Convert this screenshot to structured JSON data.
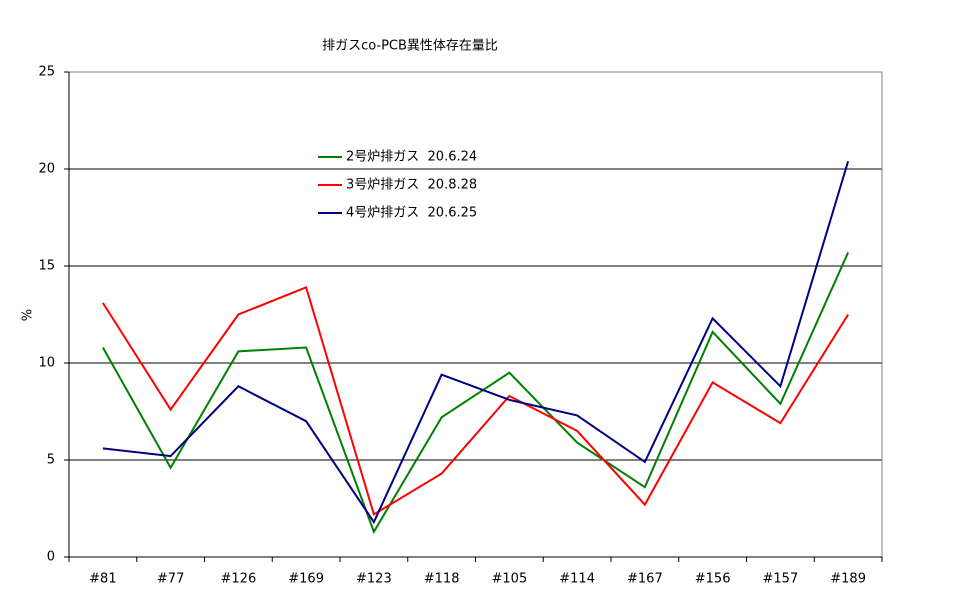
{
  "chart_data": {
    "type": "line",
    "title": "排ガスco-PCB異性体存在量比",
    "y_label": "%",
    "categories": [
      "#81",
      "#77",
      "#126",
      "#169",
      "#123",
      "#118",
      "#105",
      "#114",
      "#167",
      "#156",
      "#157",
      "#189"
    ],
    "series": [
      {
        "name": "2号炉排ガス  20.6.24",
        "color": "#008000",
        "values": [
          10.8,
          4.6,
          10.6,
          10.8,
          1.3,
          7.2,
          9.5,
          5.9,
          3.6,
          11.6,
          7.9,
          15.7
        ]
      },
      {
        "name": "3号炉排ガス  20.8.28",
        "color": "#ff0000",
        "values": [
          13.1,
          7.6,
          12.5,
          13.9,
          2.2,
          4.3,
          8.3,
          6.5,
          2.7,
          9.0,
          6.9,
          12.5
        ]
      },
      {
        "name": "4号炉排ガス  20.6.25",
        "color": "#000080",
        "values": [
          5.6,
          5.2,
          8.8,
          7.0,
          1.8,
          9.4,
          8.1,
          7.3,
          4.9,
          12.3,
          8.8,
          20.4
        ]
      }
    ],
    "ylim": [
      0,
      25
    ],
    "yticks": [
      0,
      5,
      10,
      15,
      20,
      25
    ],
    "grid": true,
    "legend": "upper-center"
  }
}
